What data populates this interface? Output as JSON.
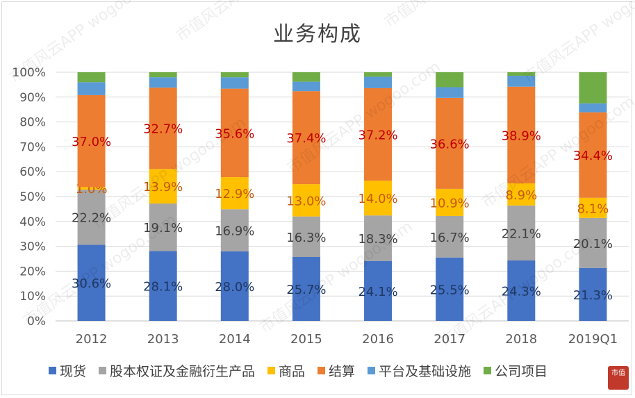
{
  "chart_data": {
    "type": "bar",
    "stacked": true,
    "normalized": true,
    "title": "业务构成",
    "categories": [
      "2012",
      "2013",
      "2014",
      "2015",
      "2016",
      "2017",
      "2018",
      "2019Q1"
    ],
    "ylim": [
      0,
      100
    ],
    "ytick_labels": [
      "0%",
      "10%",
      "20%",
      "30%",
      "40%",
      "50%",
      "60%",
      "70%",
      "80%",
      "90%",
      "100%"
    ],
    "grid": true,
    "legend_position": "bottom",
    "series": [
      {
        "name": "现货",
        "color": "#4472c4",
        "values": [
          30.6,
          28.1,
          28.0,
          25.7,
          24.1,
          25.5,
          24.3,
          21.3
        ],
        "labels": [
          "30.6%",
          "28.1%",
          "28.0%",
          "25.7%",
          "24.1%",
          "25.5%",
          "24.3%",
          "21.3%"
        ]
      },
      {
        "name": "股本权证及金融衍生产品",
        "color": "#a5a5a5",
        "values": [
          22.2,
          19.1,
          16.9,
          16.3,
          18.3,
          16.7,
          22.1,
          20.1
        ],
        "labels": [
          "22.2%",
          "19.1%",
          "16.9%",
          "16.3%",
          "18.3%",
          "16.7%",
          "22.1%",
          "20.1%"
        ]
      },
      {
        "name": "商品",
        "color": "#ffc000",
        "values": [
          1.0,
          13.9,
          12.9,
          13.0,
          14.0,
          10.9,
          8.9,
          8.1
        ],
        "labels": [
          "1.0%",
          "13.9%",
          "12.9%",
          "13.0%",
          "14.0%",
          "10.9%",
          "8.9%",
          "8.1%"
        ]
      },
      {
        "name": "结算",
        "color": "#ed7d31",
        "values": [
          37.0,
          32.7,
          35.6,
          37.4,
          37.2,
          36.6,
          38.9,
          34.4
        ],
        "labels": [
          "37.0%",
          "32.7%",
          "35.6%",
          "37.4%",
          "37.2%",
          "36.6%",
          "38.9%",
          "34.4%"
        ]
      },
      {
        "name": "平台及基础设施",
        "color": "#5b9bd5",
        "values": [
          5.2,
          4.2,
          4.6,
          3.8,
          4.6,
          4.3,
          4.4,
          3.6
        ]
      },
      {
        "name": "公司项目",
        "color": "#70ad47",
        "values": [
          4.0,
          2.0,
          2.0,
          3.8,
          1.8,
          6.0,
          1.4,
          12.5
        ]
      }
    ]
  },
  "watermark": "市值风云APP  wogoo.com",
  "stamp": "市值"
}
